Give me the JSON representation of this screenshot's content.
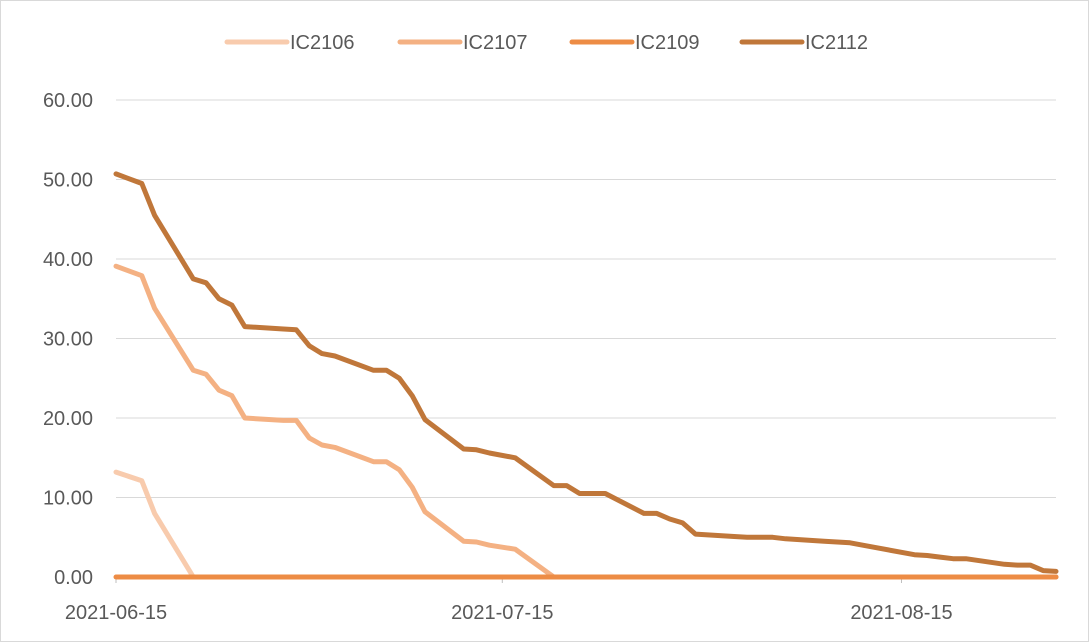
{
  "chart_data": {
    "type": "line",
    "title": "",
    "xlabel": "",
    "ylabel": "",
    "x_ticks": [
      "2021-06-15",
      "2021-07-15",
      "2021-08-15"
    ],
    "y_ticks": [
      "0.00",
      "10.00",
      "20.00",
      "30.00",
      "40.00",
      "50.00",
      "60.00"
    ],
    "ylim": [
      0,
      60
    ],
    "xlim": [
      "2021-06-15",
      "2021-08-27"
    ],
    "grid": "horizontal",
    "legend": "top-center",
    "series": [
      {
        "name": "IC2106",
        "color": "#f8cbad",
        "points": [
          [
            "2021-06-15",
            13.2
          ],
          [
            "2021-06-17",
            12.1
          ],
          [
            "2021-06-18",
            8.0
          ],
          [
            "2021-06-21",
            0
          ],
          [
            "2021-08-27",
            0
          ]
        ]
      },
      {
        "name": "IC2107",
        "color": "#f4b183",
        "points": [
          [
            "2021-06-15",
            39.1
          ],
          [
            "2021-06-17",
            37.9
          ],
          [
            "2021-06-18",
            33.8
          ],
          [
            "2021-06-21",
            26.0
          ],
          [
            "2021-06-22",
            25.5
          ],
          [
            "2021-06-23",
            23.5
          ],
          [
            "2021-06-24",
            22.8
          ],
          [
            "2021-06-25",
            20.0
          ],
          [
            "2021-06-28",
            19.7
          ],
          [
            "2021-06-29",
            19.7
          ],
          [
            "2021-06-30",
            17.5
          ],
          [
            "2021-07-01",
            16.6
          ],
          [
            "2021-07-02",
            16.3
          ],
          [
            "2021-07-05",
            14.5
          ],
          [
            "2021-07-06",
            14.5
          ],
          [
            "2021-07-07",
            13.5
          ],
          [
            "2021-07-08",
            11.3
          ],
          [
            "2021-07-09",
            8.2
          ],
          [
            "2021-07-12",
            4.5
          ],
          [
            "2021-07-13",
            4.4
          ],
          [
            "2021-07-14",
            4.0
          ],
          [
            "2021-07-16",
            3.5
          ],
          [
            "2021-07-19",
            0
          ],
          [
            "2021-08-27",
            0
          ]
        ]
      },
      {
        "name": "IC2109",
        "color": "#ed8c45",
        "points": [
          [
            "2021-06-15",
            0
          ],
          [
            "2021-08-27",
            0
          ]
        ]
      },
      {
        "name": "IC2112",
        "color": "#c0773a",
        "points": [
          [
            "2021-06-15",
            50.7
          ],
          [
            "2021-06-17",
            49.5
          ],
          [
            "2021-06-18",
            45.5
          ],
          [
            "2021-06-21",
            37.5
          ],
          [
            "2021-06-22",
            37.0
          ],
          [
            "2021-06-23",
            35.0
          ],
          [
            "2021-06-24",
            34.2
          ],
          [
            "2021-06-25",
            31.5
          ],
          [
            "2021-06-28",
            31.2
          ],
          [
            "2021-06-29",
            31.1
          ],
          [
            "2021-06-30",
            29.1
          ],
          [
            "2021-07-01",
            28.1
          ],
          [
            "2021-07-02",
            27.8
          ],
          [
            "2021-07-05",
            26.0
          ],
          [
            "2021-07-06",
            26.0
          ],
          [
            "2021-07-07",
            25.0
          ],
          [
            "2021-07-08",
            22.8
          ],
          [
            "2021-07-09",
            19.8
          ],
          [
            "2021-07-12",
            16.1
          ],
          [
            "2021-07-13",
            16.0
          ],
          [
            "2021-07-14",
            15.6
          ],
          [
            "2021-07-16",
            15.0
          ],
          [
            "2021-07-19",
            11.5
          ],
          [
            "2021-07-20",
            11.5
          ],
          [
            "2021-07-21",
            10.5
          ],
          [
            "2021-07-22",
            10.5
          ],
          [
            "2021-07-23",
            10.5
          ],
          [
            "2021-07-26",
            8.0
          ],
          [
            "2021-07-27",
            8.0
          ],
          [
            "2021-07-28",
            7.3
          ],
          [
            "2021-07-29",
            6.8
          ],
          [
            "2021-07-30",
            5.4
          ],
          [
            "2021-08-02",
            5.1
          ],
          [
            "2021-08-03",
            5.0
          ],
          [
            "2021-08-04",
            5.0
          ],
          [
            "2021-08-05",
            5.0
          ],
          [
            "2021-08-06",
            4.8
          ],
          [
            "2021-08-09",
            4.5
          ],
          [
            "2021-08-10",
            4.4
          ],
          [
            "2021-08-11",
            4.3
          ],
          [
            "2021-08-12",
            4.0
          ],
          [
            "2021-08-13",
            3.7
          ],
          [
            "2021-08-16",
            2.8
          ],
          [
            "2021-08-17",
            2.7
          ],
          [
            "2021-08-18",
            2.5
          ],
          [
            "2021-08-19",
            2.3
          ],
          [
            "2021-08-20",
            2.3
          ],
          [
            "2021-08-23",
            1.6
          ],
          [
            "2021-08-24",
            1.5
          ],
          [
            "2021-08-25",
            1.5
          ],
          [
            "2021-08-26",
            0.8
          ],
          [
            "2021-08-27",
            0.7
          ]
        ]
      }
    ]
  }
}
